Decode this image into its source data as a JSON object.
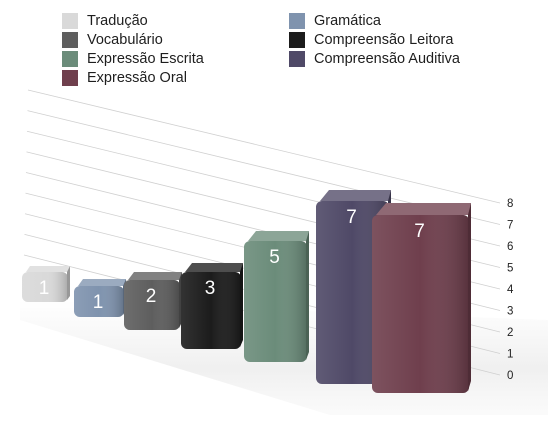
{
  "chart_data": {
    "type": "bar",
    "categories": [
      "Tradução",
      "Gramática",
      "Vocabulário",
      "Compreensão Leitora",
      "Expressão Escrita",
      "Compreensão Auditiva",
      "Expressão Oral"
    ],
    "values": [
      1,
      1,
      2,
      3,
      5,
      7,
      7
    ],
    "data_labels": [
      "1",
      "1",
      "2",
      "3",
      "5",
      "7",
      "7"
    ],
    "colors": [
      "#d9d9d9",
      "#7f93ae",
      "#5e5e5e",
      "#1c1c1c",
      "#6b8c7a",
      "#4f4967",
      "#6f3f4d"
    ],
    "ylim": [
      0,
      8
    ],
    "y_ticks": [
      "0",
      "1",
      "2",
      "3",
      "4",
      "5",
      "6",
      "7",
      "8"
    ],
    "grid": true,
    "legend_position": "top",
    "style": "3d-perspective"
  },
  "legend": {
    "items": [
      {
        "label": "Tradução",
        "color": "#d9d9d9"
      },
      {
        "label": "Gramática",
        "color": "#7f93ae"
      },
      {
        "label": "Vocabulário",
        "color": "#5e5e5e"
      },
      {
        "label": "Compreensão Leitora",
        "color": "#1c1c1c"
      },
      {
        "label": "Expressão Escrita",
        "color": "#6b8c7a"
      },
      {
        "label": "Compreensão Auditiva",
        "color": "#4f4967"
      },
      {
        "label": "Expressão Oral",
        "color": "#6f3f4d"
      }
    ]
  }
}
